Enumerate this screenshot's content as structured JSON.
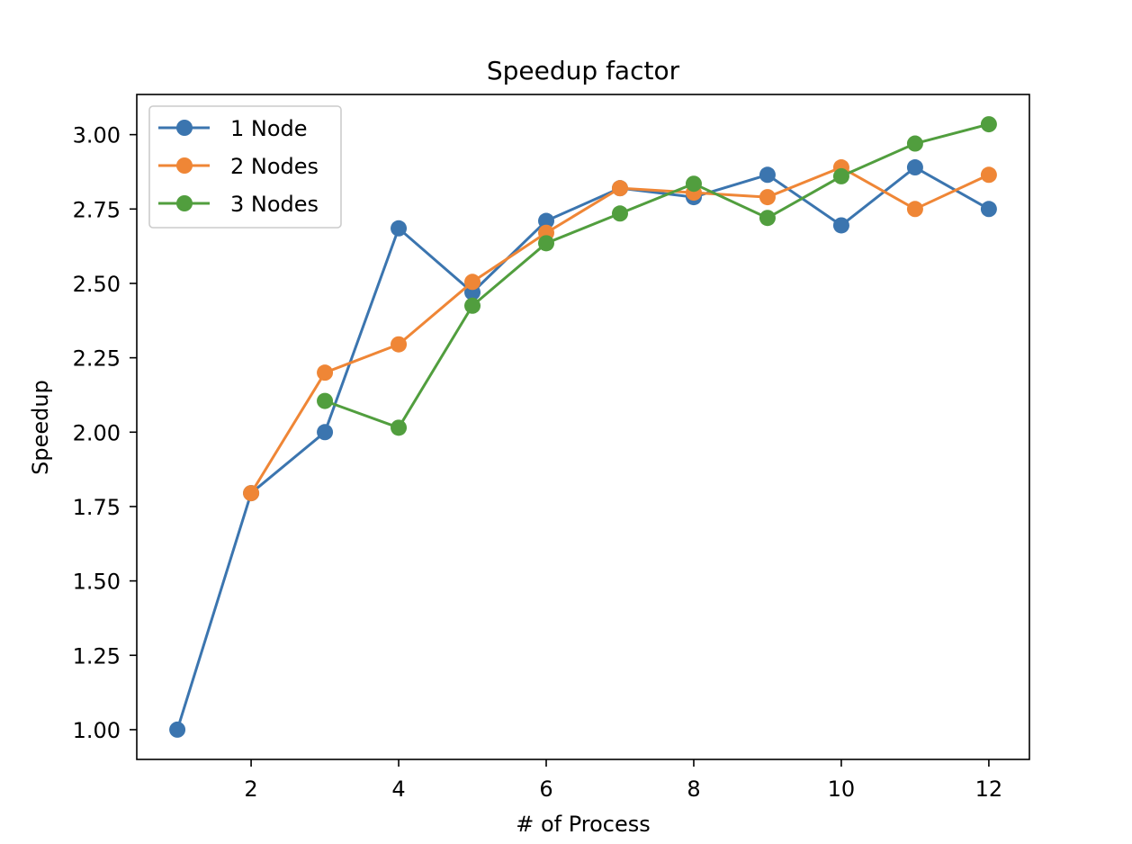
{
  "chart_data": {
    "type": "line",
    "title": "Speedup factor",
    "xlabel": "# of Process",
    "ylabel": "Speedup",
    "xlim": [
      0.45,
      12.55
    ],
    "ylim": [
      0.9,
      3.135
    ],
    "xticks": [
      2,
      4,
      6,
      8,
      10,
      12
    ],
    "xtick_labels": [
      "2",
      "4",
      "6",
      "8",
      "10",
      "12"
    ],
    "yticks": [
      1.0,
      1.25,
      1.5,
      1.75,
      2.0,
      2.25,
      2.5,
      2.75,
      3.0
    ],
    "ytick_labels": [
      "1.00",
      "1.25",
      "1.50",
      "1.75",
      "2.00",
      "2.25",
      "2.50",
      "2.75",
      "3.00"
    ],
    "grid": false,
    "legend_position": "top-left",
    "series": [
      {
        "name": "1 Node",
        "color": "#3b75af",
        "x": [
          1,
          2,
          3,
          4,
          5,
          6,
          7,
          8,
          9,
          10,
          11,
          12
        ],
        "values": [
          1.0,
          1.795,
          2.0,
          2.685,
          2.47,
          2.71,
          2.82,
          2.79,
          2.865,
          2.695,
          2.89,
          2.75
        ]
      },
      {
        "name": "2 Nodes",
        "color": "#ef8636",
        "x": [
          2,
          3,
          4,
          5,
          6,
          7,
          8,
          9,
          10,
          11,
          12
        ],
        "values": [
          1.795,
          2.2,
          2.295,
          2.505,
          2.67,
          2.82,
          2.805,
          2.79,
          2.89,
          2.75,
          2.865
        ]
      },
      {
        "name": "3 Nodes",
        "color": "#519e3e",
        "x": [
          3,
          4,
          5,
          6,
          7,
          8,
          9,
          10,
          11,
          12
        ],
        "values": [
          2.105,
          2.015,
          2.425,
          2.635,
          2.735,
          2.835,
          2.72,
          2.86,
          2.97,
          3.035
        ]
      }
    ]
  }
}
